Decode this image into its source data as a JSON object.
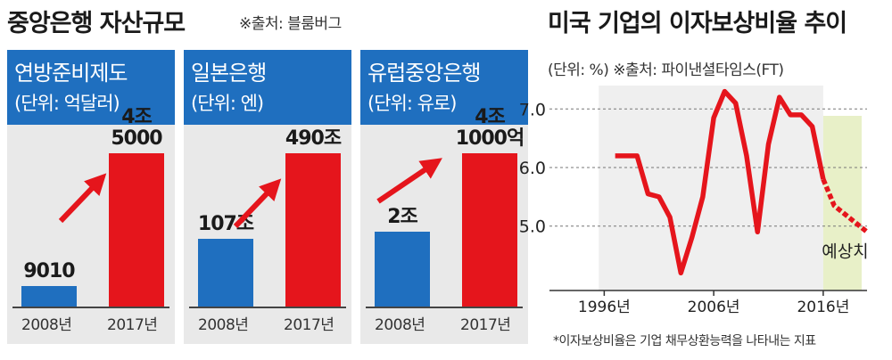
{
  "left": {
    "title": "중앙은행 자산규모",
    "source": "※출처: 블룸버그",
    "panels": [
      {
        "name": "연방준비제도",
        "unit": "(단위: 억달러)",
        "years": [
          "2008년",
          "2017년"
        ],
        "labels": [
          "9010",
          "4조\n5000"
        ]
      },
      {
        "name": "일본은행",
        "unit": "(단위: 엔)",
        "years": [
          "2008년",
          "2017년"
        ],
        "labels": [
          "107조",
          "490조"
        ]
      },
      {
        "name": "유럽중앙은행",
        "unit": "(단위: 유로)",
        "years": [
          "2008년",
          "2017년"
        ],
        "labels": [
          "2조",
          "4조\n1000억"
        ]
      }
    ]
  },
  "right": {
    "title": "미국 기업의 이자보상비율 추이",
    "subtitle": "(단위: %)  ※출처: 파이낸셜타임스(FT)",
    "forecast_label": "예상치",
    "footnote": "*이자보상비율은 기업 채무상환능력을 나타내는 지표"
  },
  "colors": {
    "blue": "#1f6fbf",
    "red": "#e5151c",
    "panel_bg": "#e9e9e9",
    "forecast_bg": "#e8f0c8"
  },
  "chart_data": [
    {
      "type": "bar",
      "title": "연방준비제도",
      "unit": "억달러",
      "categories": [
        "2008년",
        "2017년"
      ],
      "values": [
        9010,
        45000
      ],
      "value_labels": [
        "9010",
        "4조 5000"
      ]
    },
    {
      "type": "bar",
      "title": "일본은행",
      "unit": "엔",
      "categories": [
        "2008년",
        "2017년"
      ],
      "values": [
        107,
        490
      ],
      "value_labels": [
        "107조",
        "490조"
      ]
    },
    {
      "type": "bar",
      "title": "유럽중앙은행",
      "unit": "유로",
      "categories": [
        "2008년",
        "2017년"
      ],
      "values": [
        2,
        4.1
      ],
      "value_labels": [
        "2조",
        "4조 1000억"
      ]
    },
    {
      "type": "line",
      "title": "미국 기업의 이자보상비율 추이",
      "ylabel": "%",
      "xlim": [
        1991,
        2020
      ],
      "ylim": [
        3.9,
        7.4
      ],
      "yticks": [
        5.0,
        6.0,
        7.0
      ],
      "ytick_labels": [
        "5.0",
        "6.0",
        "7.0"
      ],
      "xticks": [
        1996,
        2006,
        2016
      ],
      "xtick_labels": [
        "1996년",
        "2006년",
        "2016년"
      ],
      "forecast_start": 2016,
      "series": [
        {
          "name": "actual",
          "x": [
            1997,
            1999,
            2000,
            2001,
            2002,
            2003,
            2004,
            2005,
            2006,
            2007,
            2008,
            2009,
            2010,
            2011,
            2012,
            2013,
            2014,
            2015,
            2016
          ],
          "y": [
            6.2,
            6.2,
            5.55,
            5.5,
            5.15,
            4.2,
            4.8,
            5.5,
            6.85,
            7.3,
            7.1,
            6.2,
            4.9,
            6.4,
            7.2,
            6.9,
            6.9,
            6.7,
            5.8
          ]
        },
        {
          "name": "forecast",
          "x": [
            2016,
            2017,
            2018,
            2019,
            2020
          ],
          "y": [
            5.8,
            5.35,
            5.2,
            5.05,
            4.9
          ]
        }
      ]
    }
  ]
}
